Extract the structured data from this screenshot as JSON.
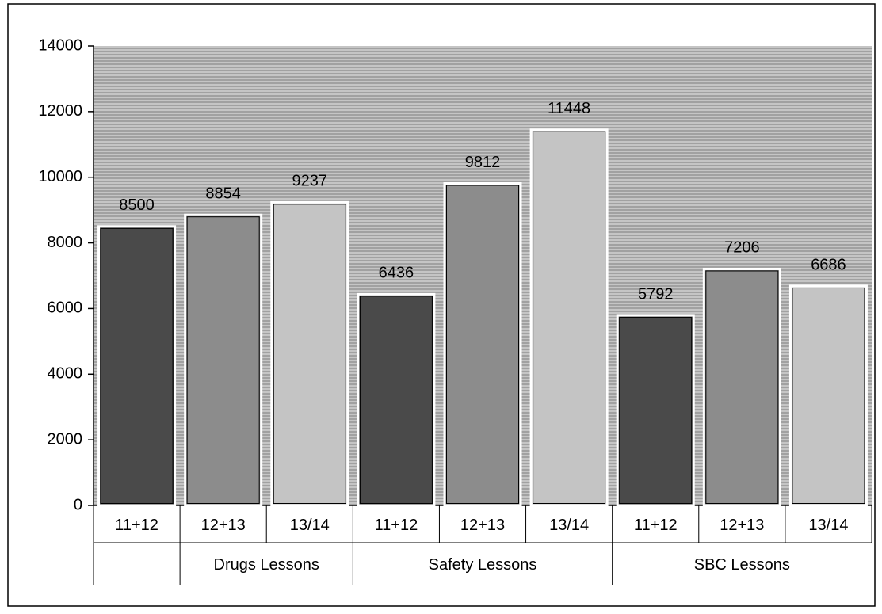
{
  "chart_data": {
    "type": "bar",
    "categories": [
      "11+12",
      "12+13",
      "13/14",
      "11+12",
      "12+13",
      "13/14",
      "11+12",
      "12+13",
      "13/14"
    ],
    "values": [
      8500,
      8854,
      9237,
      6436,
      9812,
      11448,
      5792,
      7206,
      6686
    ],
    "colors": [
      "#4a4a4a",
      "#8c8c8c",
      "#c4c4c4",
      "#4a4a4a",
      "#8c8c8c",
      "#c4c4c4",
      "#4a4a4a",
      "#8c8c8c",
      "#c4c4c4"
    ],
    "group_labels": [
      null,
      "Drugs Lessons",
      "Safety Lessons",
      "SBC Lessons"
    ],
    "group_sizes": [
      1,
      2,
      3,
      3
    ],
    "ylim": [
      0,
      14000
    ],
    "yticks": [
      0,
      2000,
      4000,
      6000,
      8000,
      10000,
      12000,
      14000
    ],
    "grid": false
  }
}
